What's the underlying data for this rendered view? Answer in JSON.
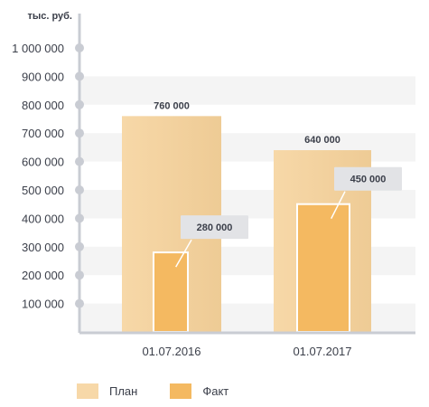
{
  "chart_data": {
    "type": "bar",
    "unit_label": "тыс. руб.",
    "categories": [
      "01.07.2016",
      "01.07.2017"
    ],
    "series": [
      {
        "name": "План",
        "values": [
          760000,
          640000
        ],
        "labels": [
          "760 000",
          "640 000"
        ],
        "color": "#f7d8a8"
      },
      {
        "name": "Факт",
        "values": [
          280000,
          450000
        ],
        "labels": [
          "280 000",
          "450 000"
        ],
        "color": "#f4b961"
      }
    ],
    "y_ticks": [
      {
        "value": 100000,
        "label": "100 000"
      },
      {
        "value": 200000,
        "label": "200 000"
      },
      {
        "value": 300000,
        "label": "300 000"
      },
      {
        "value": 400000,
        "label": "400 000"
      },
      {
        "value": 500000,
        "label": "500 000"
      },
      {
        "value": 600000,
        "label": "600 000"
      },
      {
        "value": 700000,
        "label": "700 000"
      },
      {
        "value": 800000,
        "label": "800 000"
      },
      {
        "value": 900000,
        "label": "900 000"
      },
      {
        "value": 1000000,
        "label": "1 000 000"
      }
    ],
    "ylim": [
      0,
      1100000
    ],
    "grid": "horizontal bands",
    "legend_position": "bottom-left"
  },
  "colors": {
    "axis": "#c9ccd3",
    "band": "#f4f4f4",
    "callout": "#e2e3e6"
  }
}
